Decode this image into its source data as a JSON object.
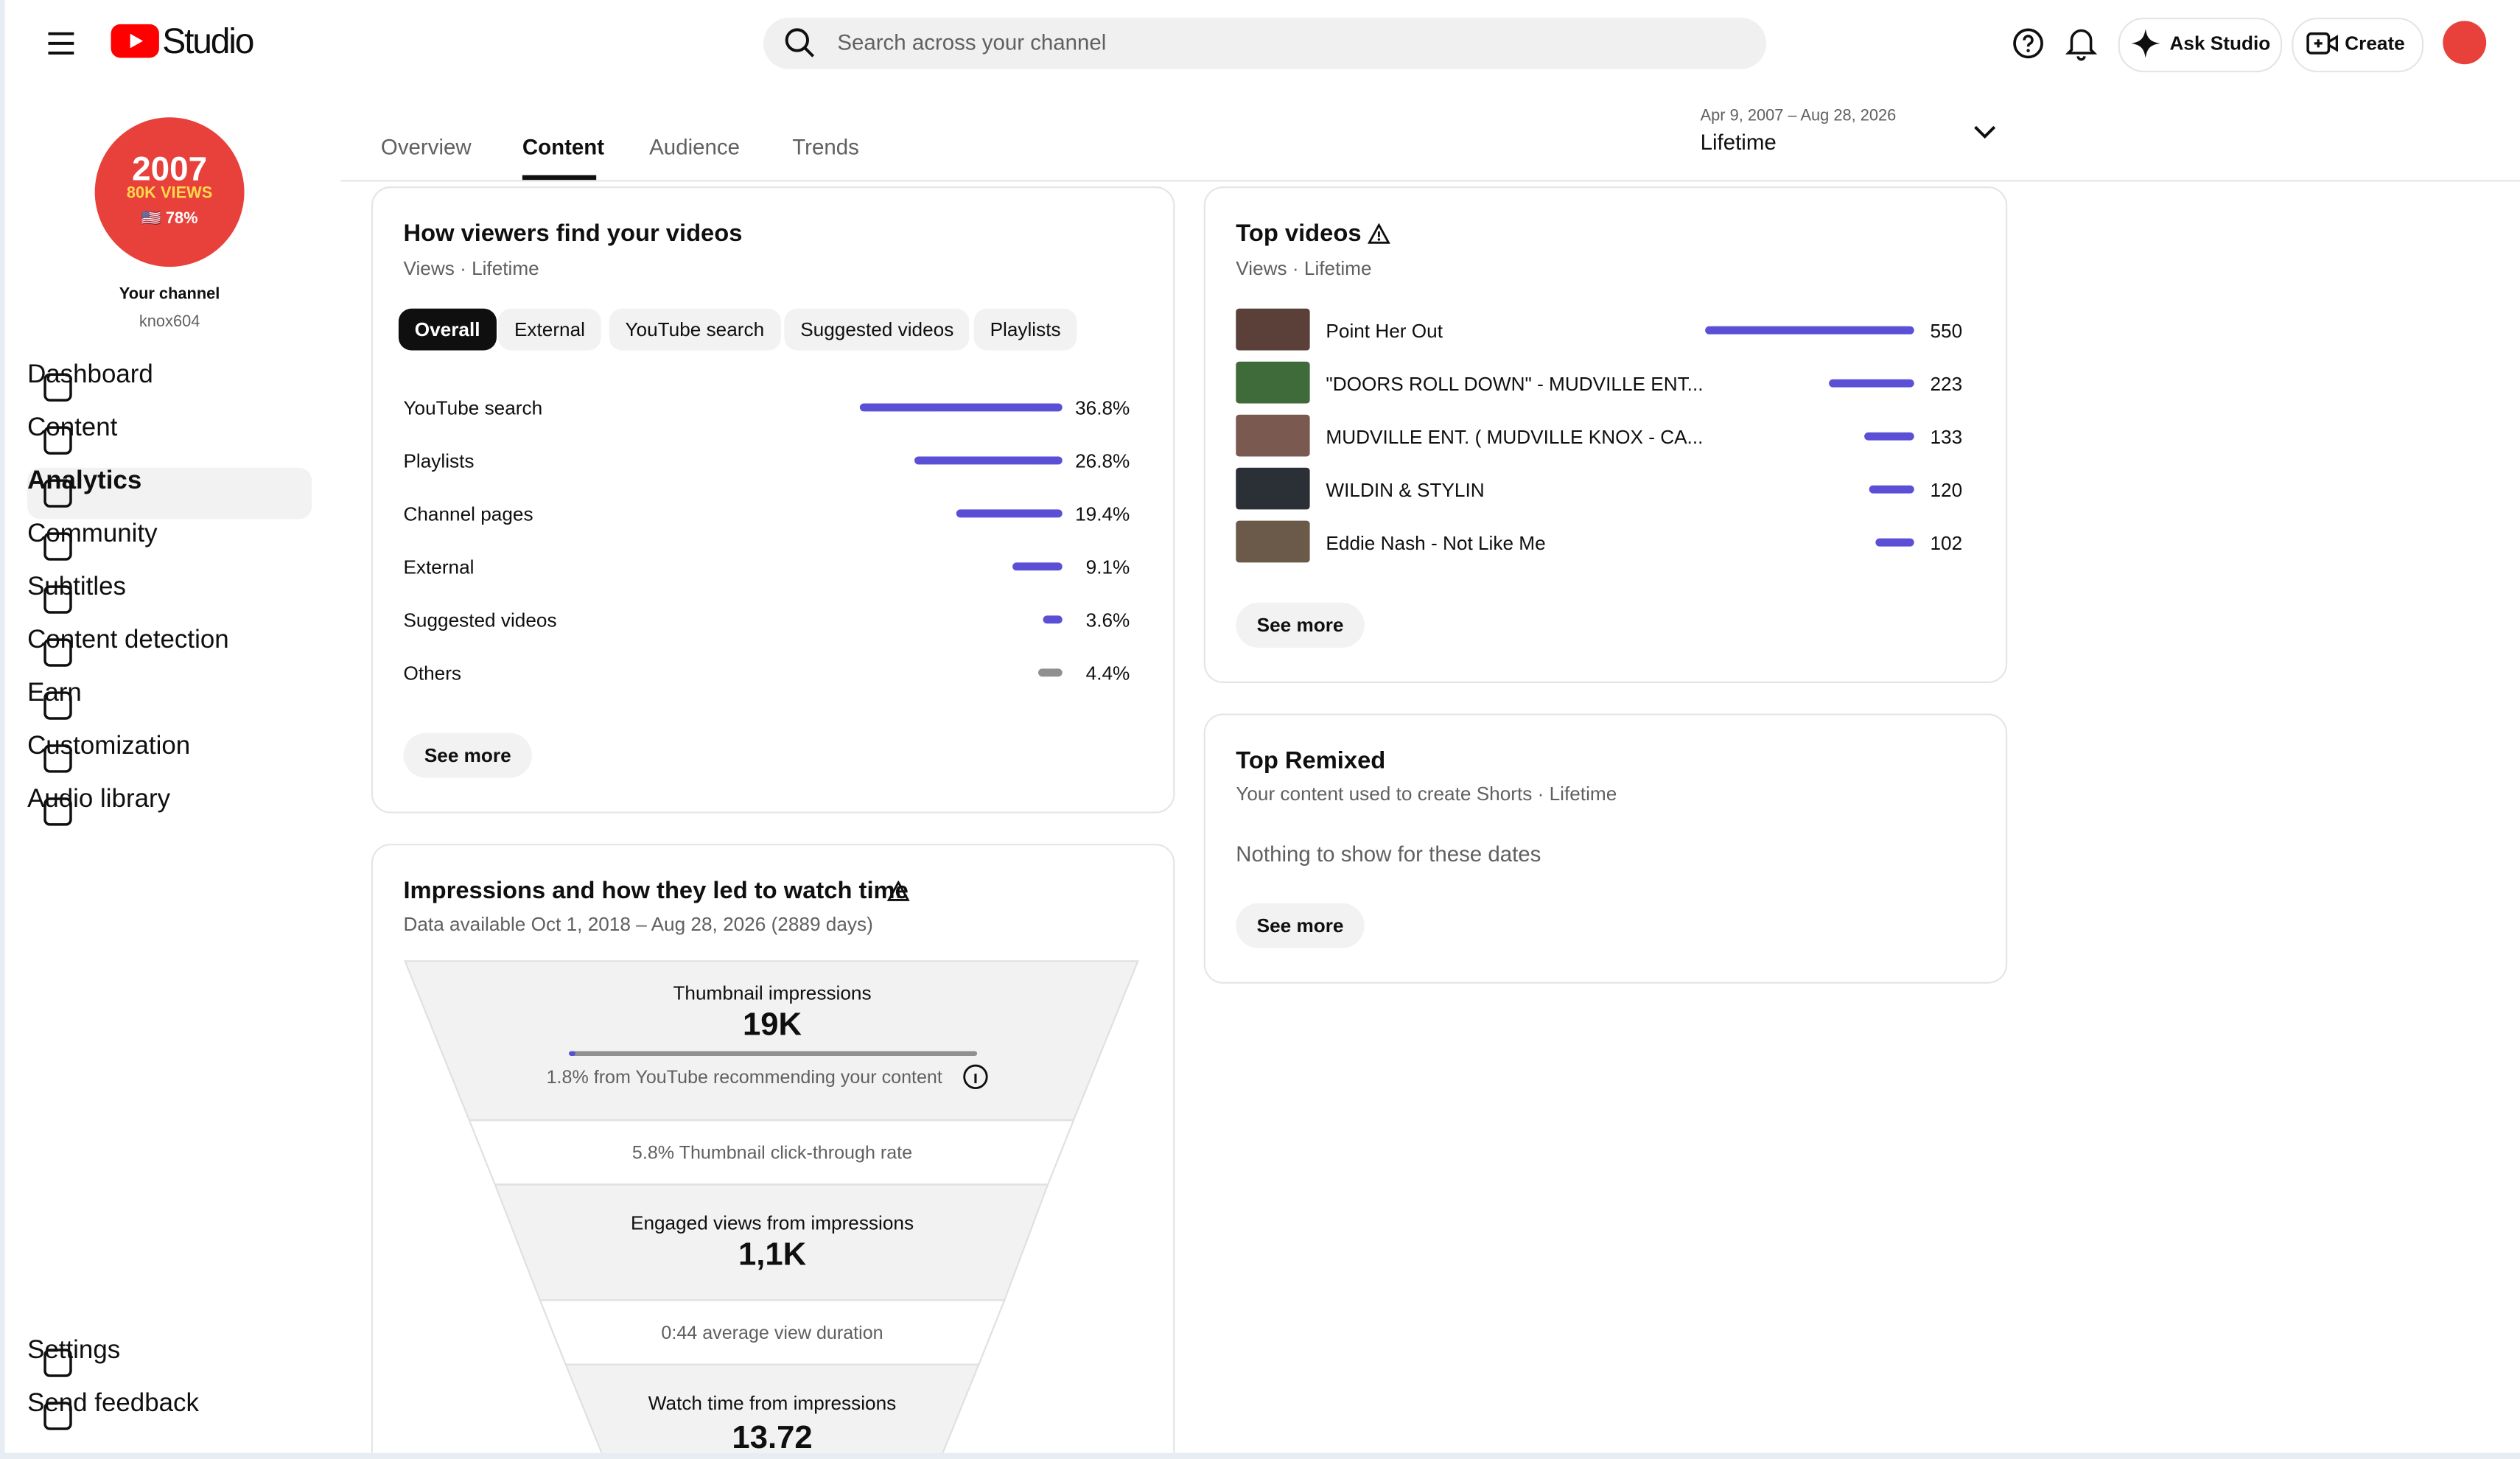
{
  "header": {
    "logo_text": "Studio",
    "search_placeholder": "Search across your channel",
    "ask_studio": "Ask Studio",
    "create": "Create"
  },
  "sidebar": {
    "avatar": {
      "line1": "2007",
      "line2": "80K VIEWS",
      "line3": "🇺🇸 78%"
    },
    "channel_title": "Your channel",
    "channel_handle": "knox604",
    "nav": [
      "Dashboard",
      "Content",
      "Analytics",
      "Community",
      "Subtitles",
      "Content detection",
      "Earn",
      "Customization",
      "Audio library"
    ],
    "footer_nav": [
      "Settings",
      "Send feedback"
    ]
  },
  "tabs": [
    "Overview",
    "Content",
    "Audience",
    "Trends"
  ],
  "date_range": {
    "range": "Apr 9, 2007 – Aug 28, 2026",
    "label": "Lifetime"
  },
  "traffic_card": {
    "title": "How viewers find your videos",
    "subtitle": "Views · Lifetime",
    "chips": [
      "Overall",
      "External",
      "YouTube search",
      "Suggested videos",
      "Playlists"
    ],
    "rows": [
      {
        "label": "YouTube search",
        "value": 36.8,
        "value_label": "36.8%"
      },
      {
        "label": "Playlists",
        "value": 26.8,
        "value_label": "26.8%"
      },
      {
        "label": "Channel pages",
        "value": 19.4,
        "value_label": "19.4%"
      },
      {
        "label": "External",
        "value": 9.1,
        "value_label": "9.1%"
      },
      {
        "label": "Suggested videos",
        "value": 3.6,
        "value_label": "3.6%"
      },
      {
        "label": "Others",
        "value": 4.4,
        "value_label": "4.4%"
      }
    ],
    "button": "See more"
  },
  "impressions_card": {
    "title": "Impressions and how they led to watch time",
    "subtitle": "Data available Oct 1, 2018 – Aug 28, 2026 (2889 days)",
    "impressions_label": "Thumbnail impressions",
    "impressions_value": "19K",
    "recommending": "1.8% from YouTube recommending your content",
    "ctr": "5.8% Thumbnail click-through rate",
    "engaged_label": "Engaged views from impressions",
    "engaged_value": "1,1K",
    "duration": "0:44 average view duration",
    "watch_label": "Watch time from impressions",
    "watch_value": "13.72"
  },
  "top_videos": {
    "title": "Top videos",
    "subtitle": "Views · Lifetime",
    "videos": [
      {
        "title": "Point Her Out",
        "views": 550
      },
      {
        "title": "\"DOORS ROLL DOWN\" - MUDVILLE ENT...",
        "views": 223
      },
      {
        "title": "MUDVILLE ENT. ( MUDVILLE KNOX - CA...",
        "views": 133
      },
      {
        "title": "WILDIN & STYLIN",
        "views": 120
      },
      {
        "title": "Eddie Nash - Not Like Me",
        "views": 102
      }
    ],
    "button": "See more"
  },
  "top_remixed": {
    "title": "Top Remixed",
    "subtitle": "Your content used to create Shorts · Lifetime",
    "empty": "Nothing to show for these dates",
    "button": "See more"
  }
}
